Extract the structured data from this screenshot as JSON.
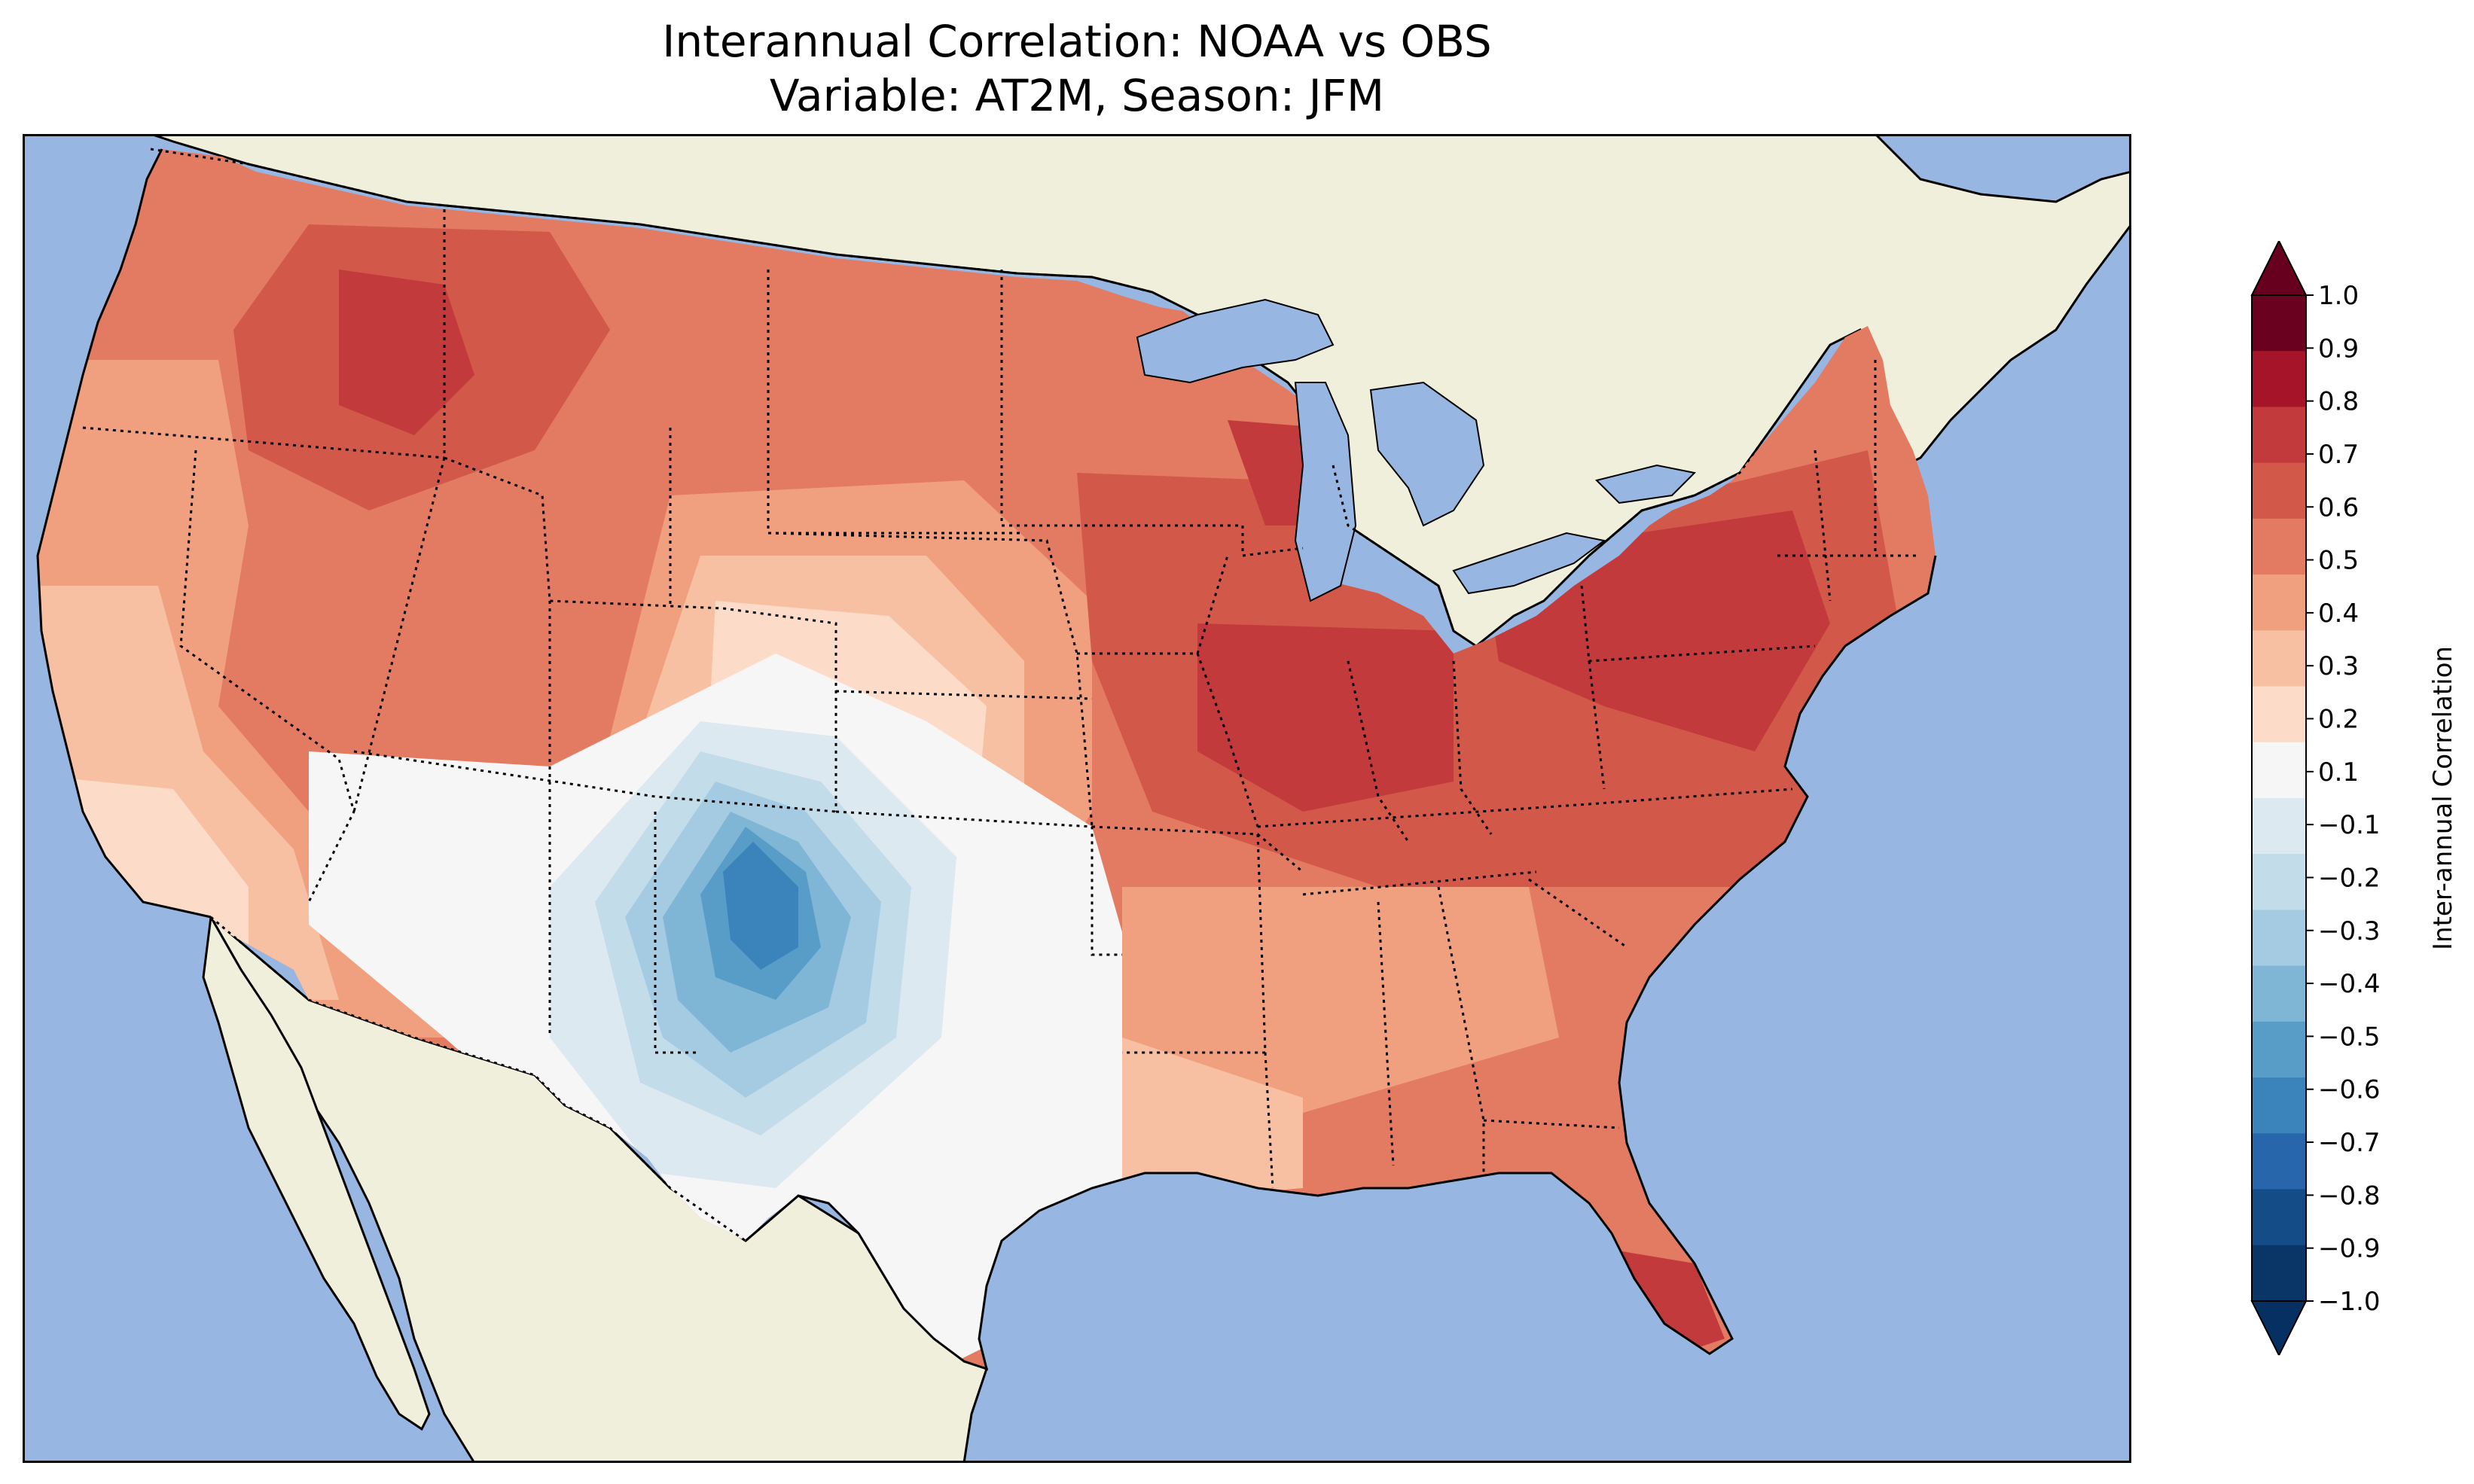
{
  "title": {
    "line1": "Interannual Correlation: NOAA vs OBS",
    "line2": "Variable: AT2M, Season: JFM"
  },
  "map": {
    "region": "Contiguous United States",
    "ocean_color": "#97b6e1",
    "land_color": "#efefdb",
    "lake_color": "#97b6e1",
    "boundaries": [
      "coastlines",
      "state borders (dotted)",
      "country borders (dotted)"
    ]
  },
  "colorbar": {
    "label": "Inter-annual Correlation",
    "colormap": "RdBu_r",
    "extend": "both",
    "ticks": [
      "1.0",
      "0.9",
      "0.8",
      "0.7",
      "0.6",
      "0.5",
      "0.4",
      "0.3",
      "0.2",
      "0.1",
      "−0.1",
      "−0.2",
      "−0.3",
      "−0.4",
      "−0.5",
      "−0.6",
      "−0.7",
      "−0.8",
      "−0.9",
      "−1.0"
    ],
    "colors": [
      "#6a011f",
      "#a51429",
      "#c33a3c",
      "#d25849",
      "#e27b62",
      "#f0a07e",
      "#f7c0a3",
      "#fcdcc9",
      "#f7f6f6",
      "#dde9f0",
      "#c3dcea",
      "#a4cbe1",
      "#7fb6d6",
      "#579dc8",
      "#3a84bb",
      "#2866ab",
      "#144c87",
      "#093567"
    ],
    "over_color": "#67001f",
    "under_color": "#053061"
  }
}
